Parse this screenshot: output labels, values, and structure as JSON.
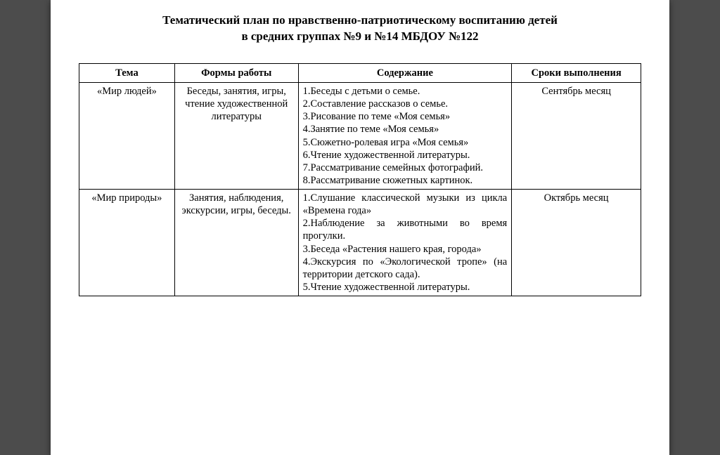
{
  "document": {
    "title_line1": "Тематический план по нравственно-патриотическому воспитанию детей",
    "title_line2": "в средних группах №9 и №14  МБДОУ №122",
    "background_color": "#4c4c4c",
    "page_color": "#ffffff",
    "border_color": "#000000",
    "font_family": "Times New Roman",
    "title_fontsize_pt": 13,
    "body_fontsize_pt": 11
  },
  "table": {
    "columns": [
      {
        "key": "theme",
        "label": "Тема",
        "width_pct": 17,
        "align": "center"
      },
      {
        "key": "forms",
        "label": "Формы работы",
        "width_pct": 22,
        "align": "center"
      },
      {
        "key": "content",
        "label": "Содержание",
        "width_pct": 38,
        "align": "justify"
      },
      {
        "key": "dates",
        "label": "Сроки выполнения",
        "width_pct": 23,
        "align": "center"
      }
    ],
    "rows": [
      {
        "theme": "«Мир людей»",
        "forms": "Беседы, занятия, игры, чтение художественной литературы",
        "content": "1.Беседы с детьми о семье.\n2.Составление рассказов о семье.\n3.Рисование по теме «Моя семья»\n4.Занятие по теме «Моя семья»\n5.Сюжетно-ролевая игра «Моя семья»\n6.Чтение художественной литературы.\n7.Рассматривание семейных фотографий.\n8.Рассматривание сюжетных картинок.",
        "dates": "Сентябрь месяц"
      },
      {
        "theme": "«Мир природы»",
        "forms": "Занятия, наблюдения, экскурсии, игры, беседы.",
        "content": "1.Слушание классической музыки из цикла «Времена года»\n2.Наблюдение за животными во время прогулки.\n3.Беседа «Растения нашего края, города»\n4.Экскурсия по «Экологической тропе» (на территории детского сада).\n5.Чтение художественной литературы.",
        "dates": "Октябрь месяц"
      }
    ]
  }
}
